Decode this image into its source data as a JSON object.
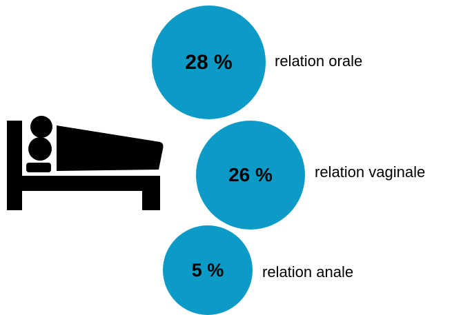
{
  "stats": [
    {
      "value": "28 %",
      "label": "relation orale",
      "fraction": 0.28
    },
    {
      "value": "26 %",
      "label": "relation vaginale",
      "fraction": 0.26
    },
    {
      "value": "5 %",
      "label": "relation anale",
      "fraction": 0.05
    }
  ],
  "colors": {
    "bubble": "#0b9bc6",
    "icon": "#000000",
    "text": "#000000"
  },
  "icon": "bed-with-person-icon"
}
